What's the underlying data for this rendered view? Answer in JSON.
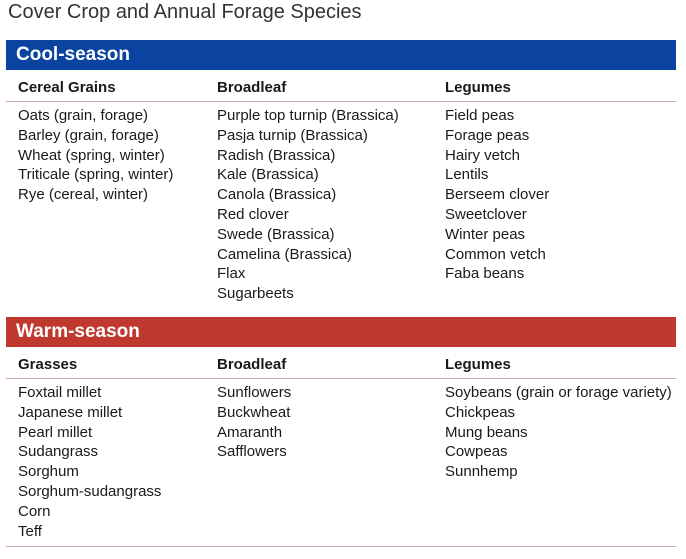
{
  "title": "Cover Crop and Annual Forage Species",
  "cool": {
    "band": "Cool-season",
    "columns": [
      {
        "header": "Cereal Grains",
        "items": [
          "Oats (grain, forage)",
          "Barley (grain, forage)",
          "Wheat (spring, winter)",
          "Triticale (spring, winter)",
          "Rye (cereal, winter)"
        ]
      },
      {
        "header": "Broadleaf",
        "items": [
          "Purple top turnip (Brassica)",
          "Pasja turnip (Brassica)",
          "Radish (Brassica)",
          "Kale (Brassica)",
          "Canola (Brassica)",
          "Red clover",
          "Swede (Brassica)",
          "Camelina (Brassica)",
          "Flax",
          "Sugarbeets"
        ]
      },
      {
        "header": "Legumes",
        "items": [
          "Field peas",
          "Forage peas",
          "Hairy vetch",
          "Lentils",
          "Berseem clover",
          "Sweetclover",
          "Winter peas",
          "Common vetch",
          "Faba beans"
        ]
      }
    ]
  },
  "warm": {
    "band": "Warm-season",
    "columns": [
      {
        "header": "Grasses",
        "items": [
          "Foxtail millet",
          "Japanese millet",
          "Pearl millet",
          "Sudangrass",
          "Sorghum",
          "Sorghum-sudangrass",
          "Corn",
          "Teff"
        ]
      },
      {
        "header": "Broadleaf",
        "items": [
          "Sunflowers",
          "Buckwheat",
          "Amaranth",
          "Safflowers"
        ]
      },
      {
        "header": "Legumes",
        "items": [
          "Soybeans (grain or forage variety)",
          "Chickpeas",
          "Mung beans",
          "Cowpeas",
          "Sunnhemp"
        ]
      }
    ]
  },
  "colors": {
    "cool_band": "#0b44a0",
    "warm_band": "#c0392e",
    "rule": "#c9a9a5"
  }
}
